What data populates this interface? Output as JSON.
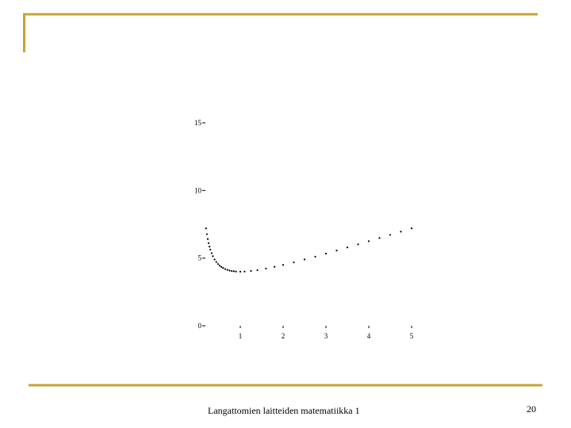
{
  "chart_data": {
    "type": "scatter",
    "x": [
      0.2,
      0.22,
      0.24,
      0.26,
      0.28,
      0.3,
      0.33,
      0.36,
      0.4,
      0.44,
      0.48,
      0.52,
      0.56,
      0.6,
      0.65,
      0.7,
      0.75,
      0.8,
      0.85,
      0.9,
      1.0,
      1.1,
      1.25,
      1.4,
      1.6,
      1.8,
      2.0,
      2.25,
      2.5,
      2.75,
      3.0,
      3.25,
      3.5,
      3.75,
      4.0,
      4.25,
      4.5,
      4.75,
      5.0
    ],
    "values": [
      7.2,
      6.77,
      6.41,
      6.11,
      5.85,
      5.63,
      5.36,
      5.14,
      4.9,
      4.71,
      4.56,
      4.44,
      4.35,
      4.27,
      4.19,
      4.13,
      4.08,
      4.05,
      4.03,
      4.01,
      4.0,
      4.01,
      4.05,
      4.11,
      4.23,
      4.36,
      4.5,
      4.69,
      4.9,
      5.11,
      5.33,
      5.56,
      5.79,
      6.02,
      6.25,
      6.49,
      6.72,
      6.96,
      7.2
    ],
    "color": "#000000",
    "xlim": [
      0,
      5
    ],
    "xticks": [
      1,
      2,
      3,
      4,
      5
    ],
    "ylim": [
      0,
      15
    ],
    "yticks": [
      0,
      5,
      10,
      15
    ]
  },
  "footer": {
    "text": "Langattomien laitteiden matematiikka 1",
    "page": 20
  }
}
